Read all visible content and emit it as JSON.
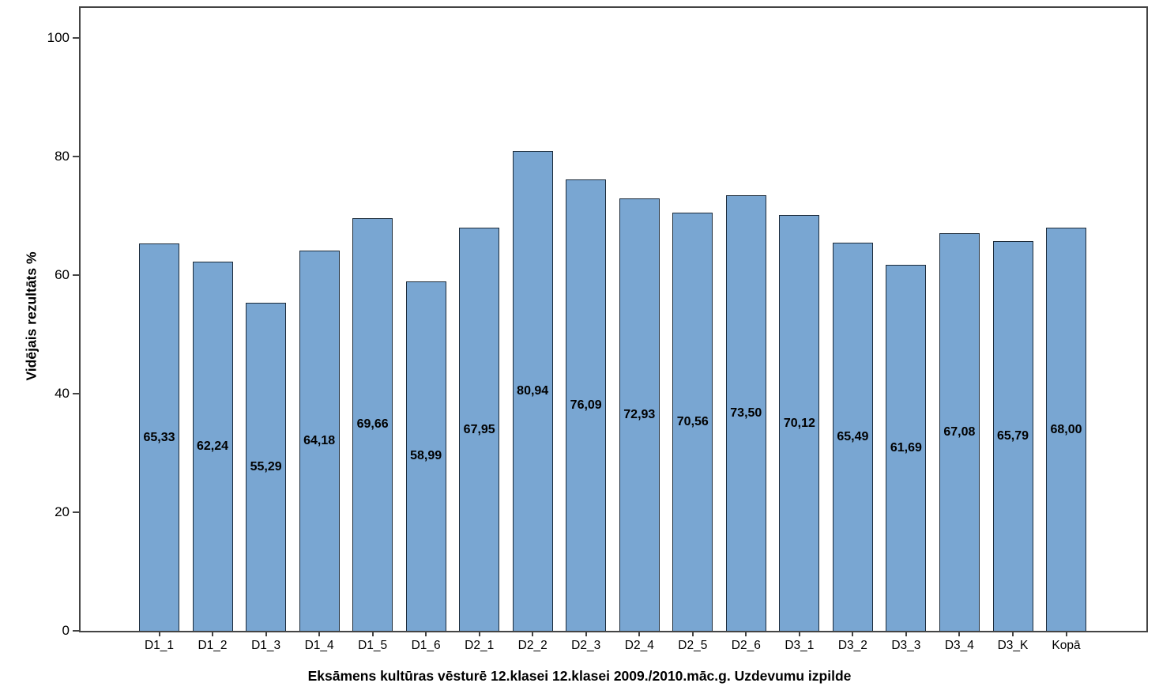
{
  "chart_data": {
    "type": "bar",
    "title": "",
    "xlabel": "Eksāmens kultūras vēsturē 12.klasei 12.klasei 2009./2010.māc.g. Uzdevumu izpilde",
    "ylabel": "Vidējais rezultāts %",
    "categories": [
      "D1_1",
      "D1_2",
      "D1_3",
      "D1_4",
      "D1_5",
      "D1_6",
      "D2_1",
      "D2_2",
      "D2_3",
      "D2_4",
      "D2_5",
      "D2_6",
      "D3_1",
      "D3_2",
      "D3_3",
      "D3_4",
      "D3_K",
      "Kopā"
    ],
    "values": [
      65.33,
      62.24,
      55.29,
      64.18,
      69.66,
      58.99,
      67.95,
      80.94,
      76.09,
      72.93,
      70.56,
      73.5,
      70.12,
      65.49,
      61.69,
      67.08,
      65.79,
      68.0
    ],
    "bar_value_labels": [
      "65,33",
      "62,24",
      "55,29",
      "64,18",
      "69,66",
      "58,99",
      "67,95",
      "80,94",
      "76,09",
      "72,93",
      "70,56",
      "73,50",
      "70,12",
      "65,49",
      "61,69",
      "67,08",
      "65,79",
      "68,00"
    ],
    "ytick_labels": [
      "0",
      "20",
      "40",
      "60",
      "80",
      "100"
    ],
    "ytick_values": [
      0,
      20,
      40,
      60,
      80,
      100
    ],
    "ylim": [
      0,
      105.6
    ],
    "grid": false,
    "legend": "none",
    "value_label_position": "center-of-bar",
    "colors": {
      "bar_fill": "#79A6D2",
      "bar_border": "#1C2B3A",
      "axis_frame": "#444444",
      "text": "#000000",
      "background": "#FFFFFF"
    }
  }
}
